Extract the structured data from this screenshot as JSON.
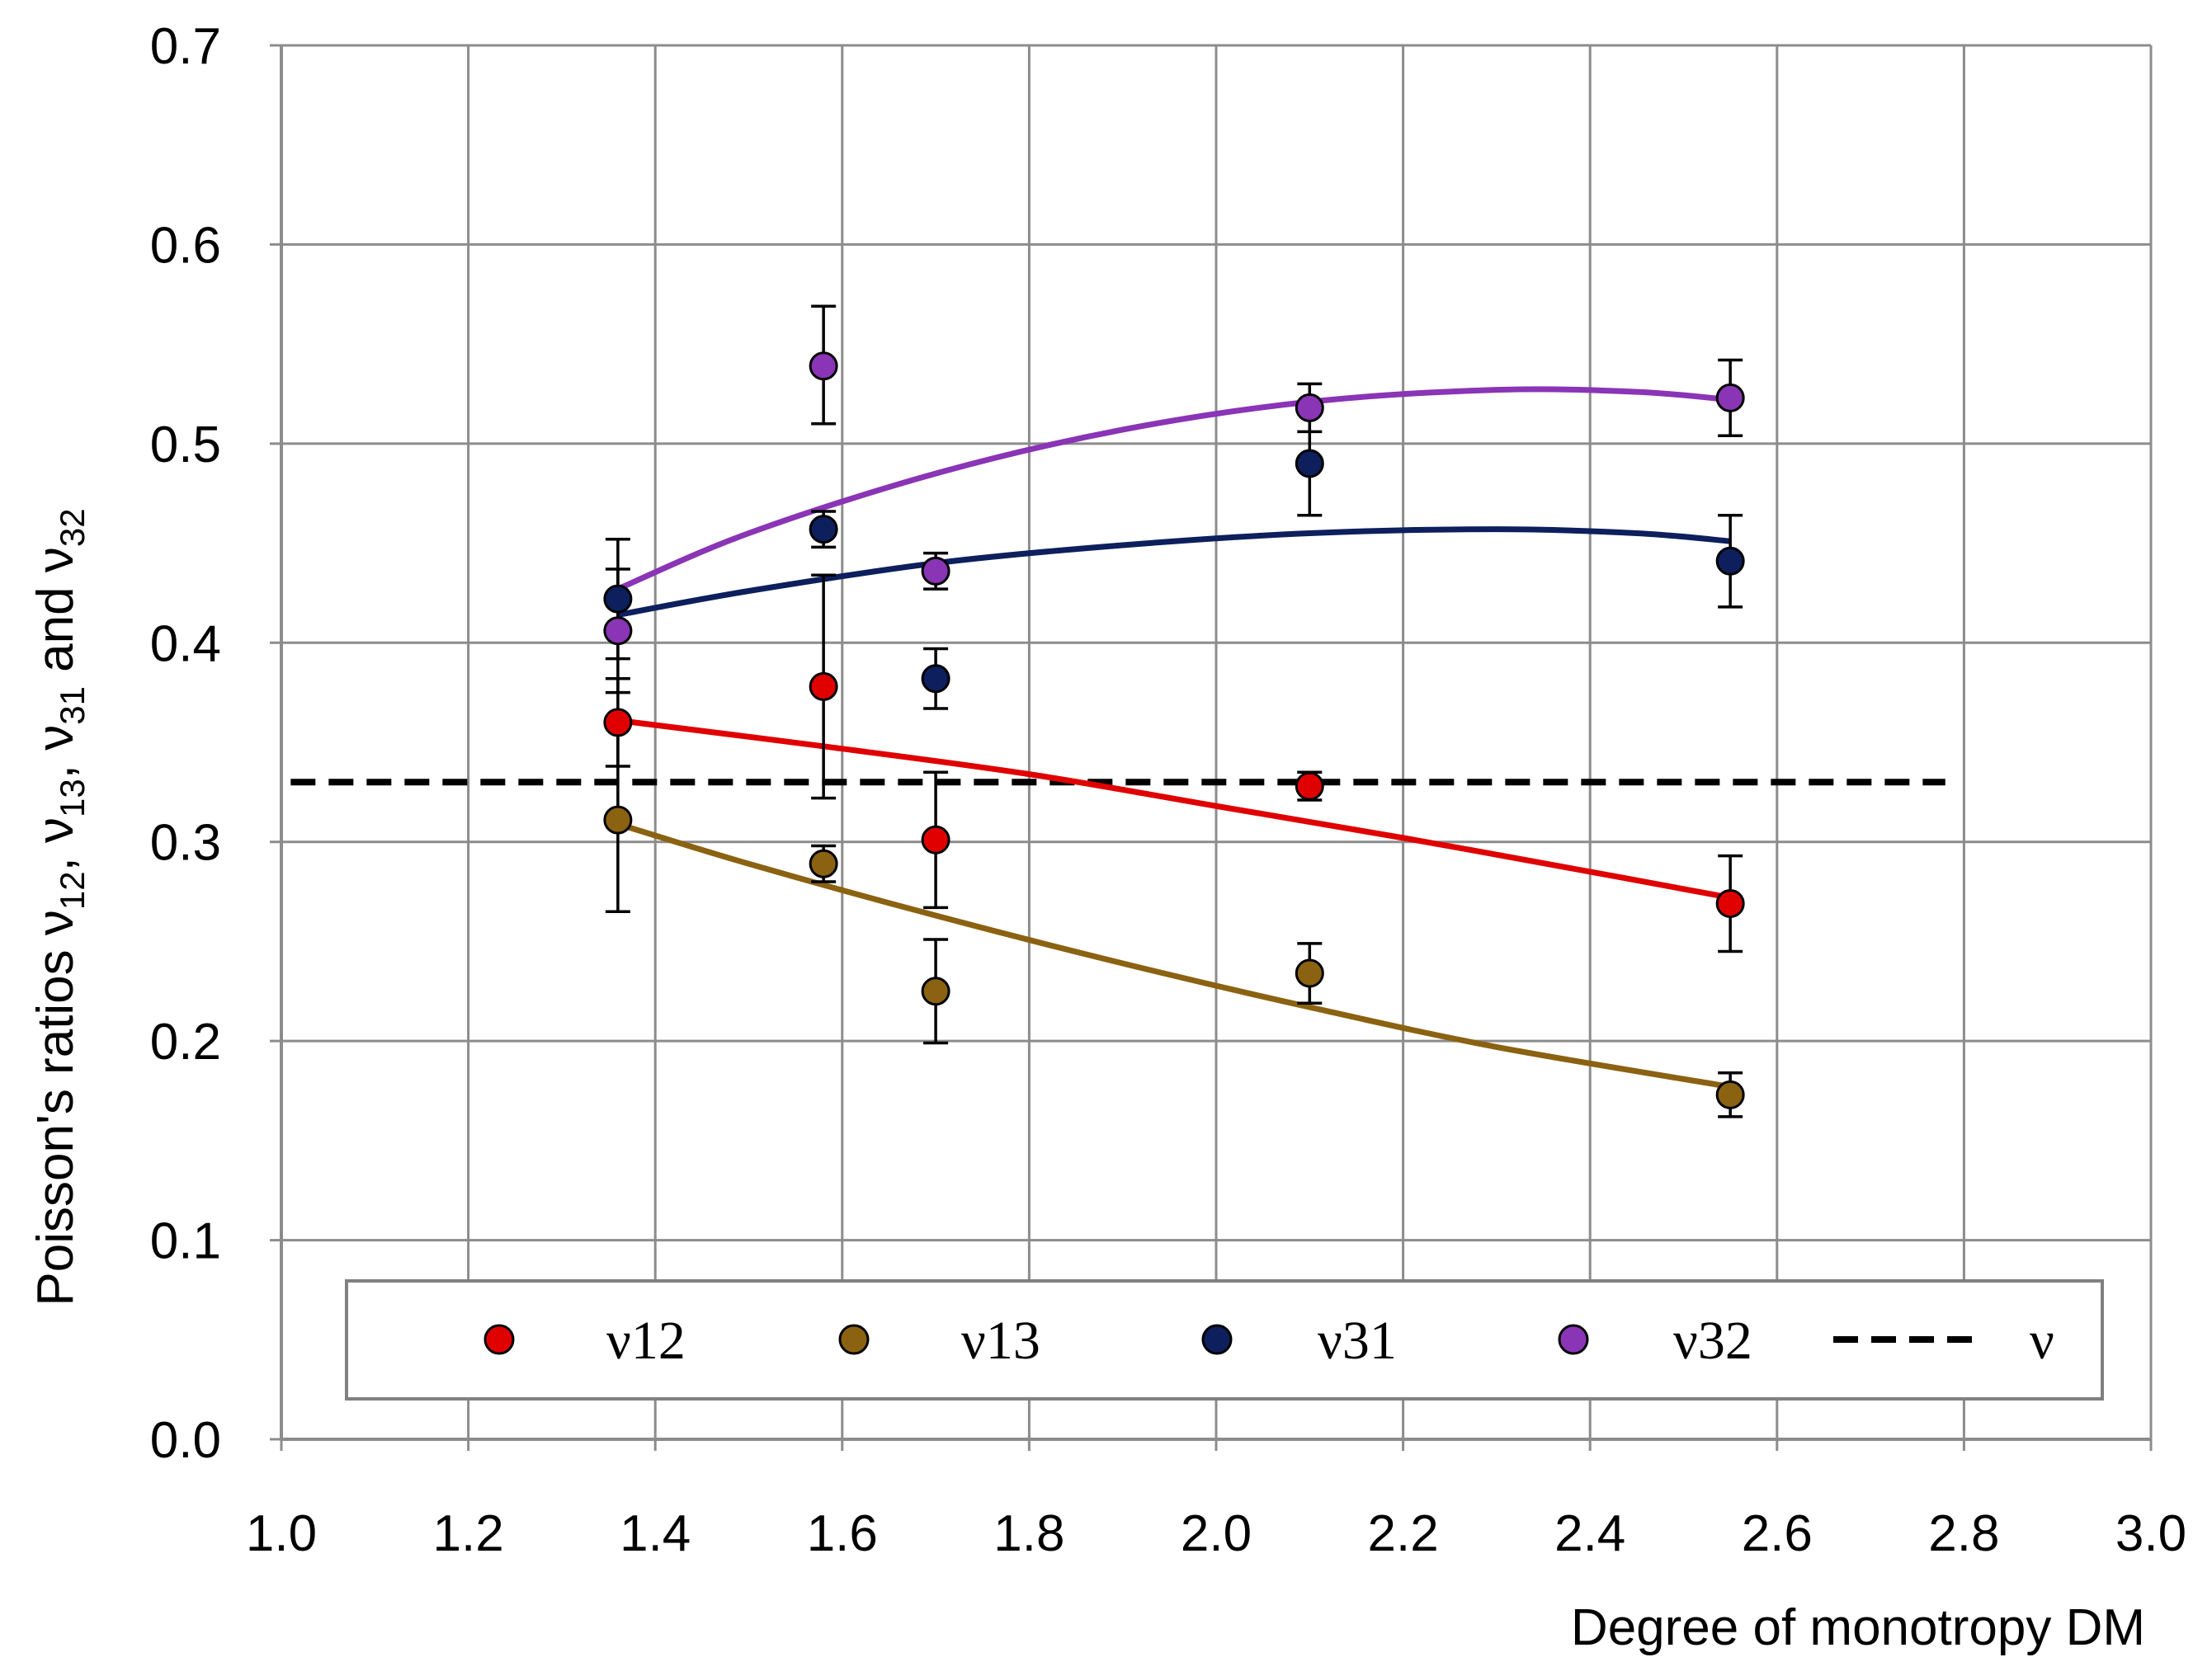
{
  "chart_data": {
    "type": "scatter",
    "title": "",
    "xlabel": "Degree of monotropy DM",
    "ylabel": {
      "prefix": "Poisson's ratios ν",
      "s1": "12",
      "mid1": ", ν",
      "s2": "13",
      "mid2": ", ν",
      "s3": "31",
      "mid3": " and ν",
      "s4": "32"
    },
    "xlim": [
      1.0,
      3.0
    ],
    "ylim": [
      0.0,
      0.7
    ],
    "x_ticks": [
      "1.0",
      "1.2",
      "1.4",
      "1.6",
      "1.8",
      "2.0",
      "2.2",
      "2.4",
      "2.6",
      "2.8",
      "3.0"
    ],
    "y_ticks": [
      "0.0",
      "0.1",
      "0.2",
      "0.3",
      "0.4",
      "0.5",
      "0.6",
      "0.7"
    ],
    "grid": true,
    "legend_position": "bottom",
    "series": [
      {
        "name": "ν12",
        "color": "#e00000",
        "points": [
          {
            "x": 1.36,
            "y": 0.36,
            "err_low": 0.338,
            "err_high": 0.382
          },
          {
            "x": 1.58,
            "y": 0.378,
            "err_low": 0.322,
            "err_high": 0.434
          },
          {
            "x": 1.7,
            "y": 0.301,
            "err_low": 0.267,
            "err_high": 0.335
          },
          {
            "x": 2.1,
            "y": 0.328,
            "err_low": 0.321,
            "err_high": 0.335
          },
          {
            "x": 2.55,
            "y": 0.269,
            "err_low": 0.245,
            "err_high": 0.293
          }
        ],
        "trend": [
          [
            1.36,
            0.361
          ],
          [
            1.58,
            0.348
          ],
          [
            1.8,
            0.334
          ],
          [
            2.0,
            0.318
          ],
          [
            2.2,
            0.302
          ],
          [
            2.4,
            0.285
          ],
          [
            2.55,
            0.272
          ]
        ]
      },
      {
        "name": "ν13",
        "color": "#8b6212",
        "points": [
          {
            "x": 1.36,
            "y": 0.311,
            "err_low": 0.265,
            "err_high": 0.357
          },
          {
            "x": 1.58,
            "y": 0.289,
            "err_low": 0.28,
            "err_high": 0.298
          },
          {
            "x": 1.7,
            "y": 0.225,
            "err_low": 0.199,
            "err_high": 0.251
          },
          {
            "x": 2.1,
            "y": 0.234,
            "err_low": 0.219,
            "err_high": 0.249
          },
          {
            "x": 2.55,
            "y": 0.173,
            "err_low": 0.162,
            "err_high": 0.184
          }
        ],
        "trend": [
          [
            1.36,
            0.309
          ],
          [
            1.5,
            0.289
          ],
          [
            1.7,
            0.263
          ],
          [
            1.9,
            0.239
          ],
          [
            2.1,
            0.217
          ],
          [
            2.3,
            0.197
          ],
          [
            2.55,
            0.177
          ]
        ]
      },
      {
        "name": "ν31",
        "color": "#0d1f5c",
        "points": [
          {
            "x": 1.36,
            "y": 0.422,
            "err_low": 0.392,
            "err_high": 0.452
          },
          {
            "x": 1.58,
            "y": 0.457,
            "err_low": 0.448,
            "err_high": 0.466
          },
          {
            "x": 1.7,
            "y": 0.382,
            "err_low": 0.367,
            "err_high": 0.397
          },
          {
            "x": 2.1,
            "y": 0.49,
            "err_low": 0.464,
            "err_high": 0.516
          },
          {
            "x": 2.55,
            "y": 0.441,
            "err_low": 0.418,
            "err_high": 0.464
          }
        ],
        "trend": [
          [
            1.36,
            0.414
          ],
          [
            1.5,
            0.426
          ],
          [
            1.7,
            0.44
          ],
          [
            1.9,
            0.449
          ],
          [
            2.1,
            0.455
          ],
          [
            2.3,
            0.457
          ],
          [
            2.45,
            0.455
          ],
          [
            2.55,
            0.451
          ]
        ]
      },
      {
        "name": "ν32",
        "color": "#8a34b6",
        "points": [
          {
            "x": 1.36,
            "y": 0.406,
            "err_low": 0.375,
            "err_high": 0.437
          },
          {
            "x": 1.58,
            "y": 0.539,
            "err_low": 0.51,
            "err_high": 0.569
          },
          {
            "x": 1.7,
            "y": 0.436,
            "err_low": 0.427,
            "err_high": 0.445
          },
          {
            "x": 2.1,
            "y": 0.518,
            "err_low": 0.506,
            "err_high": 0.53
          },
          {
            "x": 2.55,
            "y": 0.523,
            "err_low": 0.504,
            "err_high": 0.542
          }
        ],
        "trend": [
          [
            1.36,
            0.427
          ],
          [
            1.5,
            0.455
          ],
          [
            1.7,
            0.485
          ],
          [
            1.9,
            0.507
          ],
          [
            2.1,
            0.521
          ],
          [
            2.3,
            0.527
          ],
          [
            2.45,
            0.526
          ],
          [
            2.55,
            0.522
          ]
        ]
      }
    ],
    "reference_line": {
      "name": "ν",
      "y": 0.33,
      "x_start": 1.01,
      "x_end": 2.78,
      "color": "#000000",
      "style": "dashed"
    }
  }
}
